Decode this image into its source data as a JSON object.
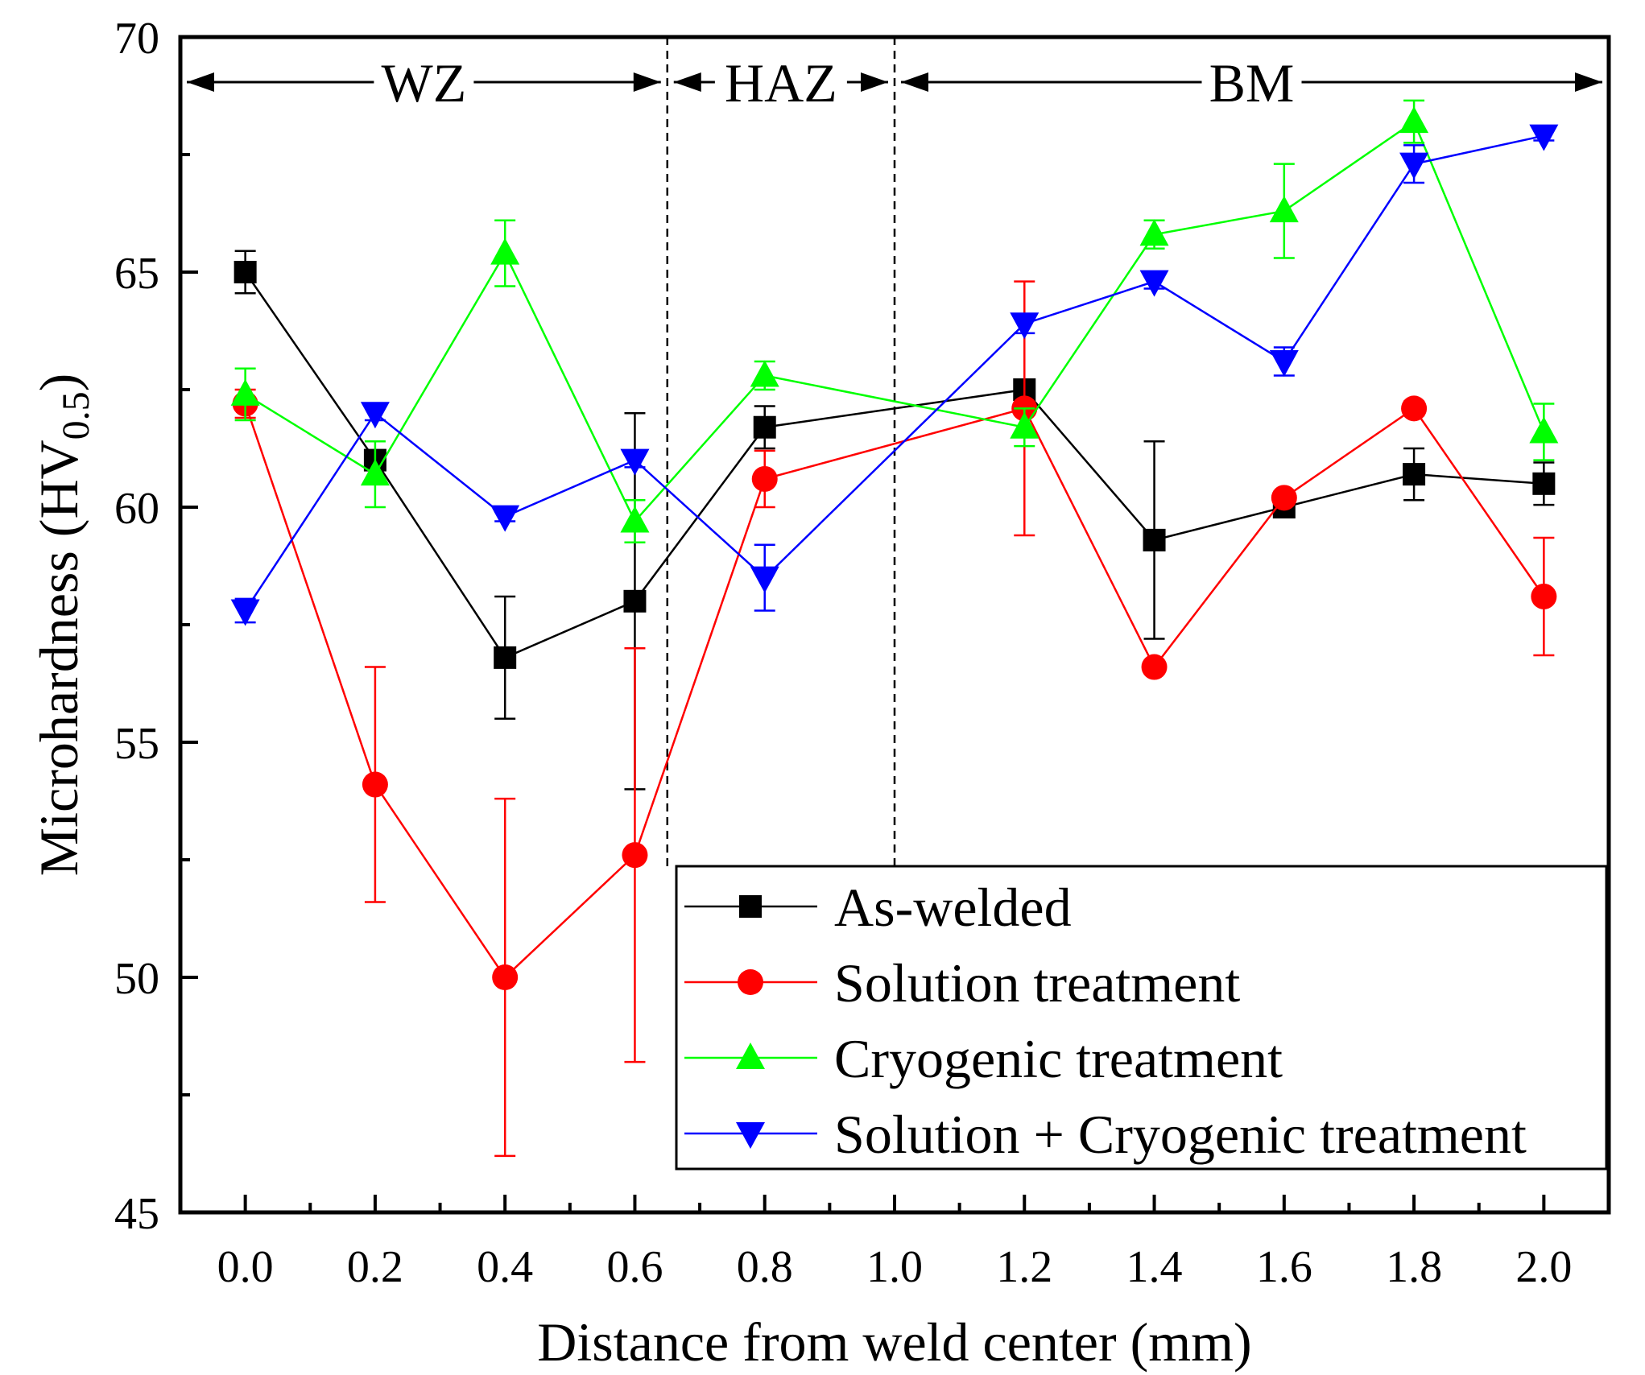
{
  "chart_data": {
    "type": "line",
    "title": "",
    "xlabel": "Distance from weld center (mm)",
    "ylabel_main": "Microhardness (HV",
    "ylabel_sub": "0.5",
    "ylabel_close": ")",
    "xlim": [
      -0.1,
      2.1
    ],
    "ylim": [
      45,
      70
    ],
    "x_ticks": [
      0.0,
      0.2,
      0.4,
      0.6,
      0.8,
      1.0,
      1.2,
      1.4,
      1.6,
      1.8,
      2.0
    ],
    "x_tick_labels": [
      "0.0",
      "0.2",
      "0.4",
      "0.6",
      "0.8",
      "1.0",
      "1.2",
      "1.4",
      "1.6",
      "1.8",
      "2.0"
    ],
    "y_ticks": [
      45,
      50,
      55,
      60,
      65,
      70
    ],
    "y_tick_labels": [
      "45",
      "50",
      "55",
      "60",
      "65",
      "70"
    ],
    "zones": [
      {
        "label": "WZ",
        "from": -0.1,
        "to": 0.65
      },
      {
        "label": "HAZ",
        "from": 0.65,
        "to": 1.0
      },
      {
        "label": "BM",
        "from": 1.0,
        "to": 2.1
      }
    ],
    "zone_boundaries": [
      0.65,
      1.0
    ],
    "legend_position": "bottom-right",
    "x": [
      0.0,
      0.2,
      0.4,
      0.6,
      0.8,
      1.2,
      1.4,
      1.6,
      1.8,
      2.0
    ],
    "series": [
      {
        "name": "As-welded",
        "color": "#000000",
        "marker": "square",
        "values": [
          65.0,
          61.0,
          56.8,
          58.0,
          61.7,
          62.5,
          59.3,
          60.0,
          60.7,
          60.5
        ],
        "errors": [
          0.45,
          0.2,
          1.3,
          4.0,
          0.45,
          0.2,
          2.1,
          0.15,
          0.55,
          0.45
        ]
      },
      {
        "name": "Solution treatment",
        "color": "#ff0000",
        "marker": "circle",
        "values": [
          62.2,
          54.1,
          50.0,
          52.6,
          60.6,
          62.1,
          56.6,
          60.2,
          62.1,
          58.1
        ],
        "errors": [
          0.3,
          2.5,
          3.8,
          4.4,
          0.6,
          2.7,
          0.1,
          0.1,
          0.15,
          1.25
        ]
      },
      {
        "name": "Cryogenic treatment",
        "color": "#00ff00",
        "marker": "triangle-up",
        "values": [
          62.4,
          60.7,
          65.4,
          59.7,
          62.8,
          61.7,
          65.8,
          66.3,
          68.2,
          61.6
        ],
        "errors": [
          0.55,
          0.7,
          0.7,
          0.45,
          0.3,
          0.4,
          0.3,
          1.0,
          0.45,
          0.6
        ]
      },
      {
        "name": "Solution + Cryogenic treatment",
        "color": "#0000ff",
        "marker": "triangle-down",
        "values": [
          57.8,
          62.0,
          59.8,
          61.0,
          58.5,
          63.9,
          64.8,
          63.1,
          67.3,
          67.9
        ],
        "errors": [
          0.25,
          0.15,
          0.1,
          0.15,
          0.7,
          0.2,
          0.15,
          0.3,
          0.4,
          0.1
        ]
      }
    ]
  }
}
